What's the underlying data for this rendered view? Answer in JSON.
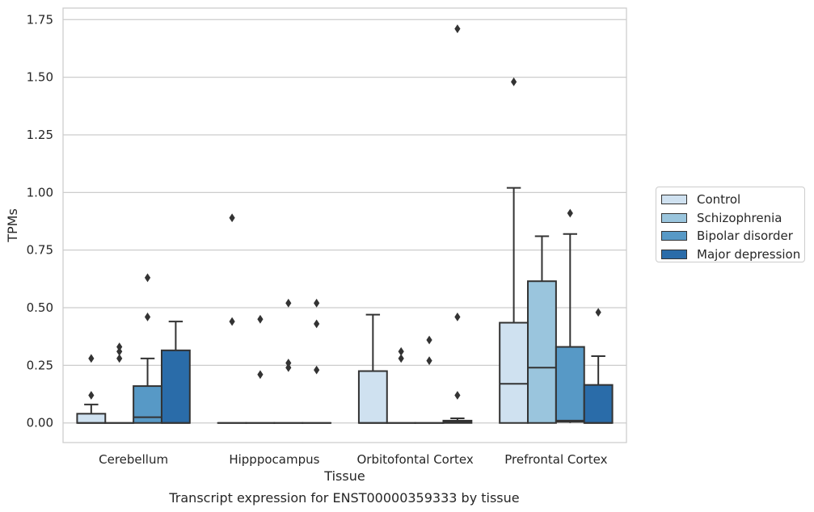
{
  "chart_data": {
    "type": "box",
    "title": "Transcript expression for ENST00000359333 by tissue",
    "xlabel": "Tissue",
    "ylabel": "TPMs",
    "ylim": [
      -0.085,
      1.8
    ],
    "yticks": [
      "0.00",
      "0.25",
      "0.50",
      "0.75",
      "1.00",
      "1.25",
      "1.50",
      "1.75"
    ],
    "ytick_values": [
      0,
      0.25,
      0.5,
      0.75,
      1.0,
      1.25,
      1.5,
      1.75
    ],
    "grid": "horizontal",
    "legend_position": "right",
    "categories": [
      "Cerebellum",
      "Hipppocampus",
      "Orbitofontal Cortex",
      "Prefrontal Cortex"
    ],
    "series": [
      {
        "name": "Control",
        "color": "#cfe1f0",
        "boxes": [
          {
            "q1": 0,
            "median": 0,
            "q3": 0.04,
            "whisker_low": 0,
            "whisker_high": 0.08,
            "outliers": [
              0.12,
              0.28
            ]
          },
          {
            "q1": 0,
            "median": 0,
            "q3": 0,
            "whisker_low": 0,
            "whisker_high": 0,
            "outliers": [
              0.44,
              0.89
            ]
          },
          {
            "q1": 0,
            "median": 0,
            "q3": 0.225,
            "whisker_low": 0,
            "whisker_high": 0.47,
            "outliers": []
          },
          {
            "q1": 0,
            "median": 0.17,
            "q3": 0.435,
            "whisker_low": 0,
            "whisker_high": 1.02,
            "outliers": [
              1.48
            ]
          }
        ]
      },
      {
        "name": "Schizophrenia",
        "color": "#9ac5dd",
        "boxes": [
          {
            "q1": 0,
            "median": 0,
            "q3": 0,
            "whisker_low": 0,
            "whisker_high": 0,
            "outliers": [
              0.28,
              0.31,
              0.33
            ]
          },
          {
            "q1": 0,
            "median": 0,
            "q3": 0,
            "whisker_low": 0,
            "whisker_high": 0,
            "outliers": [
              0.21,
              0.45
            ]
          },
          {
            "q1": 0,
            "median": 0,
            "q3": 0,
            "whisker_low": 0,
            "whisker_high": 0,
            "outliers": [
              0.28,
              0.31
            ]
          },
          {
            "q1": 0,
            "median": 0.24,
            "q3": 0.615,
            "whisker_low": 0,
            "whisker_high": 0.81,
            "outliers": []
          }
        ]
      },
      {
        "name": "Bipolar disorder",
        "color": "#5799c6",
        "boxes": [
          {
            "q1": 0,
            "median": 0.025,
            "q3": 0.16,
            "whisker_low": 0,
            "whisker_high": 0.28,
            "outliers": [
              0.46,
              0.63
            ]
          },
          {
            "q1": 0,
            "median": 0,
            "q3": 0,
            "whisker_low": 0,
            "whisker_high": 0,
            "outliers": [
              0.24,
              0.26,
              0.52
            ]
          },
          {
            "q1": 0,
            "median": 0,
            "q3": 0,
            "whisker_low": 0,
            "whisker_high": 0,
            "outliers": [
              0.27,
              0.36
            ]
          },
          {
            "q1": 0.005,
            "median": 0.01,
            "q3": 0.33,
            "whisker_low": 0,
            "whisker_high": 0.82,
            "outliers": [
              0.91
            ]
          }
        ]
      },
      {
        "name": "Major depression",
        "color": "#2a6ca9",
        "boxes": [
          {
            "q1": 0,
            "median": 0,
            "q3": 0.315,
            "whisker_low": 0,
            "whisker_high": 0.44,
            "outliers": []
          },
          {
            "q1": 0,
            "median": 0,
            "q3": 0,
            "whisker_low": 0,
            "whisker_high": 0,
            "outliers": [
              0.23,
              0.43,
              0.52
            ]
          },
          {
            "q1": 0,
            "median": 0.005,
            "q3": 0.01,
            "whisker_low": 0,
            "whisker_high": 0.02,
            "outliers": [
              0.12,
              0.46,
              1.71
            ]
          },
          {
            "q1": 0,
            "median": 0,
            "q3": 0.165,
            "whisker_low": 0,
            "whisker_high": 0.29,
            "outliers": [
              0.48
            ]
          }
        ]
      }
    ]
  }
}
